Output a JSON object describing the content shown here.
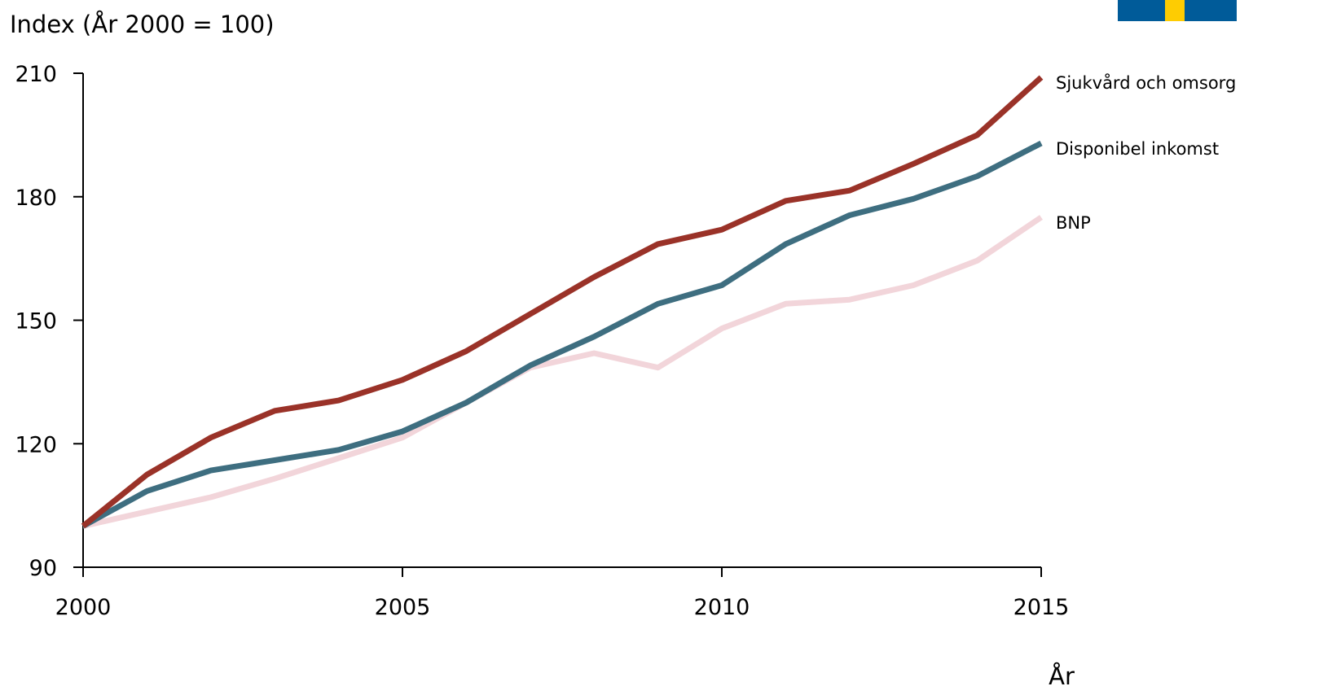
{
  "chart_data": {
    "type": "line",
    "title": "",
    "ylabel": "Index (År 2000 = 100)",
    "xlabel": "År",
    "x": [
      2000,
      2001,
      2002,
      2003,
      2004,
      2005,
      2006,
      2007,
      2008,
      2009,
      2010,
      2011,
      2012,
      2013,
      2014,
      2015
    ],
    "xlim": [
      2000,
      2015
    ],
    "ylim": [
      90,
      210
    ],
    "xticks": [
      2000,
      2005,
      2010,
      2015
    ],
    "yticks": [
      90,
      120,
      150,
      180,
      210
    ],
    "xtick_labels": [
      "2000",
      "2005",
      "2010",
      "2015"
    ],
    "ytick_labels": [
      "90",
      "120",
      "150",
      "180",
      "210"
    ],
    "grid": false,
    "legend": "inline labels at right end of lines",
    "series": [
      {
        "name": "BNP",
        "color": "#f2d5da",
        "values": [
          100,
          103.5,
          107,
          111.5,
          116.5,
          121.5,
          130,
          138.5,
          142,
          138.5,
          148,
          154,
          155,
          158.5,
          164.5,
          175
        ]
      },
      {
        "name": "Disponibel inkomst",
        "color": "#3e6e80",
        "values": [
          100,
          108.5,
          113.5,
          116,
          118.5,
          123,
          130,
          139,
          146,
          154,
          158.5,
          168.5,
          175.5,
          179.5,
          185,
          193
        ]
      },
      {
        "name": "Sjukvård och omsorg",
        "color": "#9a3228",
        "values": [
          100,
          112.5,
          121.5,
          128,
          130.5,
          135.5,
          142.5,
          151.5,
          160.5,
          168.5,
          172,
          179,
          181.5,
          188,
          195,
          209
        ]
      }
    ]
  },
  "logo": {
    "blue": "#005b99",
    "yellow": "#fecc02"
  }
}
